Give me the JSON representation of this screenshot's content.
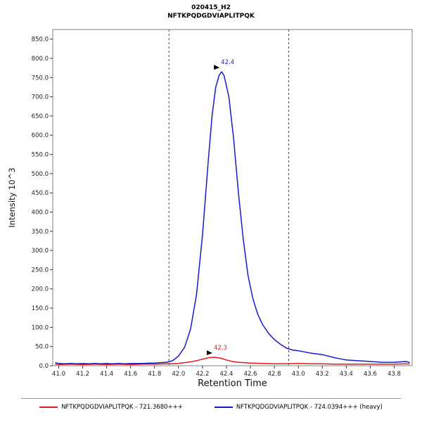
{
  "chart_data": {
    "type": "line",
    "title": "020415_H2",
    "subtitle": "NFTKPQDGDVIAPLITPQK",
    "xlabel": "Retention Time",
    "ylabel": "Intensity 10^3",
    "xlim": [
      40.95,
      43.95
    ],
    "ylim": [
      0,
      875
    ],
    "x_ticks": [
      41.0,
      41.2,
      41.4,
      41.6,
      41.8,
      42.0,
      42.2,
      42.4,
      42.6,
      42.8,
      43.0,
      43.2,
      43.4,
      43.6,
      43.8
    ],
    "y_ticks": [
      0,
      50,
      100,
      150,
      200,
      250,
      300,
      350,
      400,
      450,
      500,
      550,
      600,
      650,
      700,
      750,
      800,
      850
    ],
    "grid": false,
    "legend_position": "bottom",
    "boundaries": [
      41.92,
      42.92
    ],
    "series": [
      {
        "name": "NFTKPQDGDVIAPLITPQK - 721.3680+++",
        "color": "#e01b1b",
        "peak_label": "42.3",
        "peak_at": [
          42.3,
          22
        ],
        "points": [
          [
            40.97,
            4
          ],
          [
            41.0,
            3
          ],
          [
            41.1,
            4
          ],
          [
            41.2,
            3
          ],
          [
            41.3,
            4
          ],
          [
            41.4,
            3
          ],
          [
            41.5,
            4
          ],
          [
            41.6,
            3
          ],
          [
            41.7,
            4
          ],
          [
            41.8,
            4
          ],
          [
            41.9,
            5
          ],
          [
            41.95,
            5
          ],
          [
            42.0,
            6
          ],
          [
            42.05,
            8
          ],
          [
            42.1,
            10
          ],
          [
            42.15,
            13
          ],
          [
            42.2,
            17
          ],
          [
            42.25,
            21
          ],
          [
            42.3,
            22
          ],
          [
            42.35,
            20
          ],
          [
            42.4,
            15
          ],
          [
            42.45,
            11
          ],
          [
            42.5,
            9
          ],
          [
            42.55,
            8
          ],
          [
            42.6,
            7
          ],
          [
            42.7,
            6
          ],
          [
            42.8,
            5
          ],
          [
            42.9,
            5
          ],
          [
            43.0,
            6
          ],
          [
            43.1,
            5
          ],
          [
            43.2,
            5
          ],
          [
            43.3,
            4
          ],
          [
            43.4,
            4
          ],
          [
            43.5,
            4
          ],
          [
            43.6,
            4
          ],
          [
            43.7,
            4
          ],
          [
            43.8,
            4
          ],
          [
            43.9,
            5
          ],
          [
            43.93,
            4
          ]
        ]
      },
      {
        "name": "NFTKPQDGDVIAPLITPQK - 724.0394+++ (heavy)",
        "color": "#1919cc",
        "peak_label": "42.4",
        "peak_at": [
          42.36,
          765
        ],
        "points": [
          [
            40.97,
            8
          ],
          [
            41.0,
            6
          ],
          [
            41.05,
            5
          ],
          [
            41.1,
            6
          ],
          [
            41.15,
            5
          ],
          [
            41.2,
            6
          ],
          [
            41.25,
            5
          ],
          [
            41.3,
            6
          ],
          [
            41.35,
            5
          ],
          [
            41.4,
            6
          ],
          [
            41.45,
            5
          ],
          [
            41.5,
            6
          ],
          [
            41.55,
            5
          ],
          [
            41.6,
            6
          ],
          [
            41.65,
            6
          ],
          [
            41.7,
            6
          ],
          [
            41.75,
            7
          ],
          [
            41.8,
            7
          ],
          [
            41.85,
            8
          ],
          [
            41.9,
            9
          ],
          [
            41.95,
            13
          ],
          [
            42.0,
            25
          ],
          [
            42.05,
            48
          ],
          [
            42.1,
            95
          ],
          [
            42.15,
            185
          ],
          [
            42.2,
            340
          ],
          [
            42.25,
            540
          ],
          [
            42.28,
            650
          ],
          [
            42.31,
            725
          ],
          [
            42.34,
            757
          ],
          [
            42.36,
            765
          ],
          [
            42.38,
            755
          ],
          [
            42.42,
            700
          ],
          [
            42.46,
            590
          ],
          [
            42.5,
            450
          ],
          [
            42.54,
            330
          ],
          [
            42.58,
            235
          ],
          [
            42.62,
            175
          ],
          [
            42.66,
            135
          ],
          [
            42.7,
            108
          ],
          [
            42.75,
            85
          ],
          [
            42.8,
            68
          ],
          [
            42.85,
            56
          ],
          [
            42.9,
            46
          ],
          [
            42.95,
            41
          ],
          [
            43.0,
            39
          ],
          [
            43.05,
            36
          ],
          [
            43.1,
            33
          ],
          [
            43.15,
            31
          ],
          [
            43.2,
            29
          ],
          [
            43.25,
            25
          ],
          [
            43.3,
            21
          ],
          [
            43.35,
            18
          ],
          [
            43.4,
            15
          ],
          [
            43.45,
            14
          ],
          [
            43.5,
            13
          ],
          [
            43.55,
            12
          ],
          [
            43.6,
            11
          ],
          [
            43.65,
            10
          ],
          [
            43.7,
            9
          ],
          [
            43.75,
            9
          ],
          [
            43.8,
            9
          ],
          [
            43.85,
            10
          ],
          [
            43.9,
            11
          ],
          [
            43.93,
            8
          ]
        ]
      }
    ]
  }
}
